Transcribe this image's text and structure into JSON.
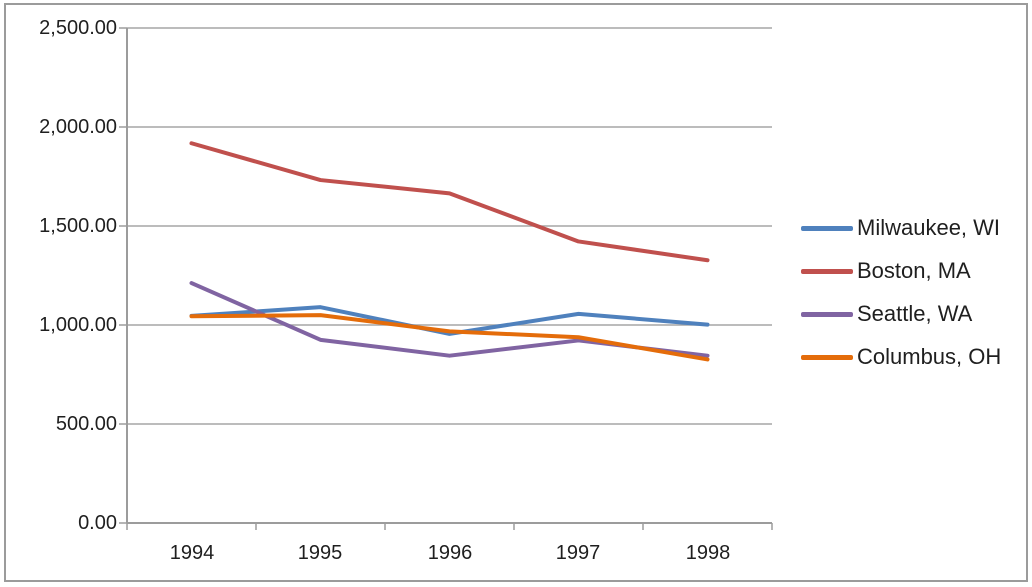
{
  "colors": {
    "gridline": "#A6A6A6",
    "axis": "#9C9C9C",
    "frame_border": "#9B9B9B",
    "text": "#1F1F1F",
    "background": "#FFFFFF"
  },
  "chart_data": {
    "type": "line",
    "categories": [
      "1994",
      "1995",
      "1996",
      "1997",
      "1998"
    ],
    "series": [
      {
        "name": "Milwaukee, WI",
        "color": "#4F81BD",
        "values": [
          1046,
          1090,
          955,
          1056,
          1002
        ]
      },
      {
        "name": "Boston, MA",
        "color": "#C0504D",
        "values": [
          1918,
          1732,
          1665,
          1422,
          1327
        ]
      },
      {
        "name": "Seattle, WA",
        "color": "#8064A2",
        "values": [
          1212,
          925,
          845,
          922,
          845
        ]
      },
      {
        "name": "Columbus, OH",
        "color": "#E46C0A",
        "values": [
          1044,
          1050,
          968,
          938,
          826
        ]
      }
    ],
    "ylim": [
      0,
      2500
    ],
    "ytick_step": 500,
    "ytick_labels": [
      "0.00",
      "500.00",
      "1,000.00",
      "1,500.00",
      "2,000.00",
      "2,500.00"
    ],
    "grid": true,
    "legend_position": "right"
  }
}
